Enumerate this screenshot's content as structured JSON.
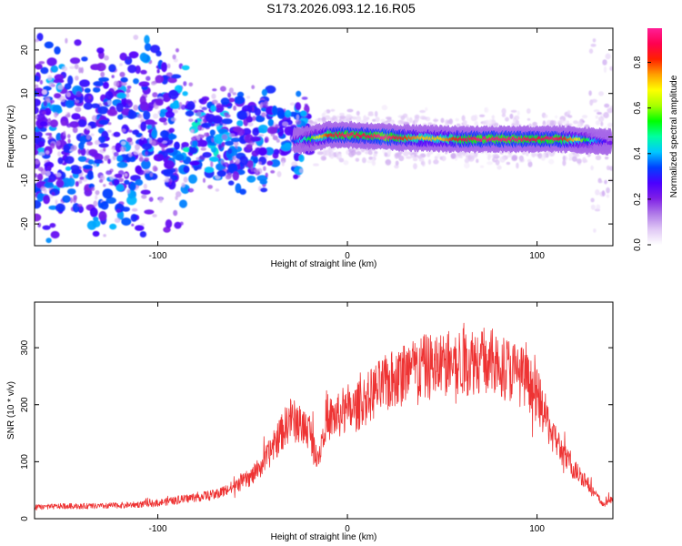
{
  "figure": {
    "title": "S173.2026.093.12.16.R05"
  },
  "chart_data": [
    {
      "type": "heatmap",
      "xlabel": "Height of straight line (km)",
      "ylabel": "Frequency (Hz)",
      "xlim": [
        -165,
        140
      ],
      "ylim": [
        -25,
        25
      ],
      "xticks": [
        -100,
        0,
        100
      ],
      "yticks": [
        -20,
        -10,
        0,
        10,
        20
      ],
      "colorbar": {
        "label": "Normalized spectral amplitude",
        "range": [
          0,
          0.95
        ],
        "ticks": [
          0.0,
          0.2,
          0.4,
          0.6,
          0.8
        ],
        "colors": [
          "#ffffff",
          "#e0c8f5",
          "#b07ae8",
          "#7f1fe6",
          "#4a00ff",
          "#0040ff",
          "#00c8ff",
          "#00ffa0",
          "#00ff00",
          "#a8ff00",
          "#ffff00",
          "#ffa000",
          "#ff2000",
          "#ff0050",
          "#ff1e96"
        ]
      },
      "ridge": {
        "x": [
          -30,
          -20,
          -10,
          0,
          10,
          20,
          30,
          40,
          50,
          60,
          70,
          80,
          90,
          100,
          110,
          120,
          130,
          138
        ],
        "freq": [
          -1.0,
          -0.5,
          0.5,
          0.5,
          0.3,
          0.0,
          -0.2,
          -0.3,
          -0.4,
          -0.5,
          -0.5,
          -0.5,
          -0.5,
          -0.5,
          -0.5,
          -0.6,
          -0.9,
          -1.2
        ],
        "amplitude": [
          0.25,
          0.5,
          0.8,
          0.9,
          0.85,
          0.95,
          0.8,
          0.7,
          0.7,
          0.85,
          0.9,
          0.9,
          0.9,
          0.85,
          0.9,
          0.7,
          0.4,
          0.2
        ]
      }
    },
    {
      "type": "line",
      "xlabel": "Height of straight line (km)",
      "ylabel": "SNR (10 * v/v)",
      "xlim": [
        -165,
        140
      ],
      "ylim": [
        0,
        380
      ],
      "xticks": [
        -100,
        0,
        100
      ],
      "yticks": [
        0,
        100,
        200,
        300
      ],
      "series": [
        {
          "color": "#ee3333",
          "x": [
            -165,
            -150,
            -130,
            -110,
            -100,
            -90,
            -80,
            -70,
            -60,
            -50,
            -45,
            -40,
            -35,
            -30,
            -25,
            -20,
            -17,
            -15,
            -12,
            -10,
            -5,
            0,
            5,
            10,
            15,
            20,
            25,
            30,
            40,
            50,
            60,
            70,
            75,
            80,
            90,
            95,
            100,
            105,
            108,
            112,
            115,
            120,
            125,
            130,
            135,
            140
          ],
          "y": [
            20,
            22,
            22,
            25,
            28,
            32,
            38,
            42,
            55,
            75,
            95,
            120,
            150,
            175,
            165,
            155,
            120,
            110,
            170,
            175,
            180,
            185,
            195,
            210,
            225,
            235,
            245,
            255,
            265,
            270,
            275,
            280,
            275,
            270,
            255,
            240,
            215,
            175,
            150,
            125,
            105,
            85,
            70,
            45,
            25,
            35
          ]
        }
      ]
    }
  ]
}
